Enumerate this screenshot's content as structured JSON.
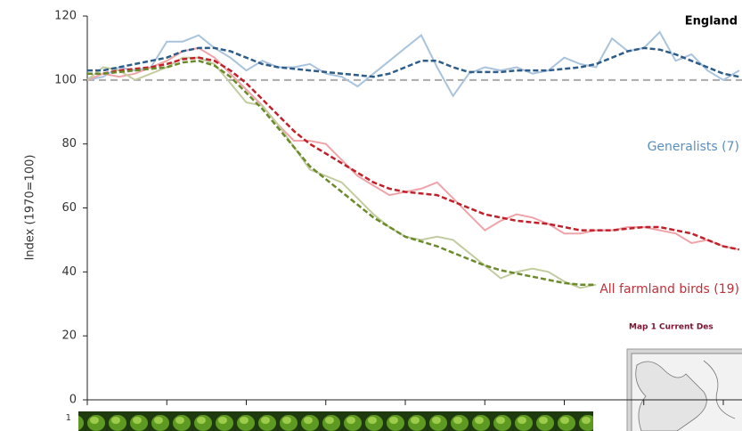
{
  "chart_data": {
    "type": "line",
    "title": "England",
    "y_label": "Index (1970=100)",
    "categories": [
      null,
      null,
      null,
      null,
      null,
      null,
      null,
      null,
      null,
      null,
      null,
      null,
      null,
      null,
      null,
      null,
      null,
      null,
      null,
      null,
      null,
      null,
      null,
      null,
      null,
      null,
      null,
      null,
      null,
      null,
      null,
      null,
      null,
      null,
      null,
      null,
      null,
      null,
      null,
      null,
      null,
      null
    ],
    "ylim": [
      0,
      120
    ],
    "yticks": [
      0,
      20,
      40,
      60,
      80,
      100,
      120
    ],
    "reference_line": 100,
    "series": [
      {
        "name": "Generalists (7)",
        "color": "#a9c3dd",
        "trend_color": "#2f5d8a",
        "label_color": "#5b8fc0",
        "values": [
          100,
          101,
          104,
          103,
          104,
          112,
          112,
          114,
          110,
          107,
          103,
          106,
          104,
          104,
          105,
          102,
          101,
          98,
          102,
          106,
          110,
          114,
          104,
          95,
          102,
          104,
          103,
          104,
          102,
          103,
          107,
          105,
          104,
          113,
          109,
          110,
          115,
          106,
          108,
          103,
          100,
          103
        ],
        "trend": [
          103,
          103,
          104,
          105,
          106,
          107,
          109,
          110,
          110,
          109,
          107,
          105,
          104,
          103.5,
          103,
          102.5,
          102,
          101.5,
          101,
          102,
          104,
          106,
          106,
          104,
          102.5,
          102.5,
          102.5,
          103,
          103,
          103,
          103.5,
          104,
          105,
          107,
          109,
          110,
          109.5,
          108,
          106,
          104,
          102,
          101
        ]
      },
      {
        "name": "All farmland birds (19)",
        "color": "#f0a3a8",
        "trend_color": "#c0202a",
        "label_color": "#c0303a",
        "values": [
          100,
          102,
          101,
          102,
          104,
          106,
          109,
          110,
          107,
          102,
          97,
          92,
          86,
          81,
          81,
          80,
          75,
          70,
          67,
          64,
          65,
          66,
          68,
          63,
          58,
          53,
          56,
          58,
          57,
          55,
          52,
          52,
          53,
          53,
          54,
          54,
          53,
          52,
          49,
          50,
          48,
          47
        ],
        "trend": [
          102,
          102,
          103,
          103.5,
          104,
          105,
          106.5,
          107,
          106,
          103,
          99,
          94,
          89,
          84,
          80,
          77,
          74,
          71,
          68,
          66,
          65,
          64.5,
          64,
          62,
          60,
          58,
          57,
          56,
          55.5,
          55,
          54,
          53,
          53,
          53,
          53.5,
          54,
          54,
          53,
          52,
          50,
          48,
          47
        ]
      },
      {
        "color": "#c2cca0",
        "trend_color": "#6b8a2a",
        "values": [
          100,
          104,
          103,
          100,
          102,
          104,
          107,
          107,
          105,
          99,
          93,
          92,
          86,
          79,
          72,
          70,
          68,
          63,
          58,
          54,
          51,
          50,
          51,
          50,
          46,
          42,
          38,
          40,
          41,
          40,
          37,
          35,
          36,
          null,
          null,
          null,
          null,
          null,
          null,
          null,
          null,
          null
        ],
        "trend": [
          102,
          102,
          102.5,
          103,
          103.5,
          104,
          105.5,
          106,
          104.5,
          101,
          96,
          91,
          85,
          79,
          73,
          69,
          65,
          61,
          57,
          54,
          51,
          49.5,
          48,
          46,
          44,
          42,
          40.5,
          39.5,
          38.5,
          37.5,
          36.5,
          36,
          36,
          null,
          null,
          null,
          null,
          null,
          null,
          null,
          null,
          null
        ]
      }
    ]
  },
  "photo_strip": {
    "label": "1"
  },
  "map": {
    "title": "Map 1 Current Des"
  }
}
